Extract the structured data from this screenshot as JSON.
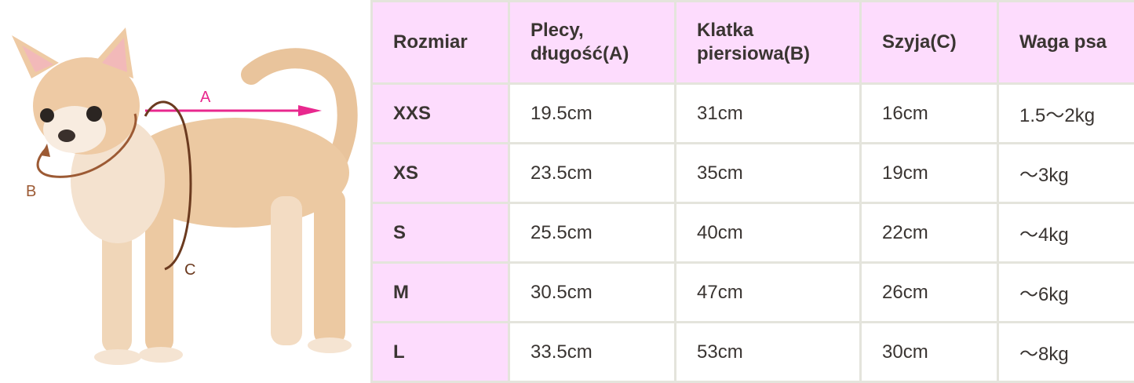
{
  "diagram": {
    "labels": {
      "a": "A",
      "b": "B",
      "c": "C"
    },
    "colors": {
      "arrow_a": "#e8288e",
      "arrow_b": "#9c5a34",
      "arrow_c": "#6b3a1f"
    }
  },
  "table": {
    "headers": [
      "Rozmiar",
      "Plecy, długość(A)",
      "Klatka piersiowa(B)",
      "Szyja(C)",
      "Waga psa"
    ],
    "rows": [
      [
        "XXS",
        "19.5cm",
        "31cm",
        "16cm",
        "1.5～2kg"
      ],
      [
        "XS",
        "23.5cm",
        "35cm",
        "19cm",
        "～3kg"
      ],
      [
        "S",
        "25.5cm",
        "40cm",
        "22cm",
        "～4kg"
      ],
      [
        "M",
        "30.5cm",
        "47cm",
        "26cm",
        "～6kg"
      ],
      [
        "L",
        "33.5cm",
        "53cm",
        "30cm",
        "～8kg"
      ]
    ],
    "colors": {
      "header_bg": "#fddcfd",
      "border": "#e4e4dc",
      "text": "#3a3532"
    }
  }
}
